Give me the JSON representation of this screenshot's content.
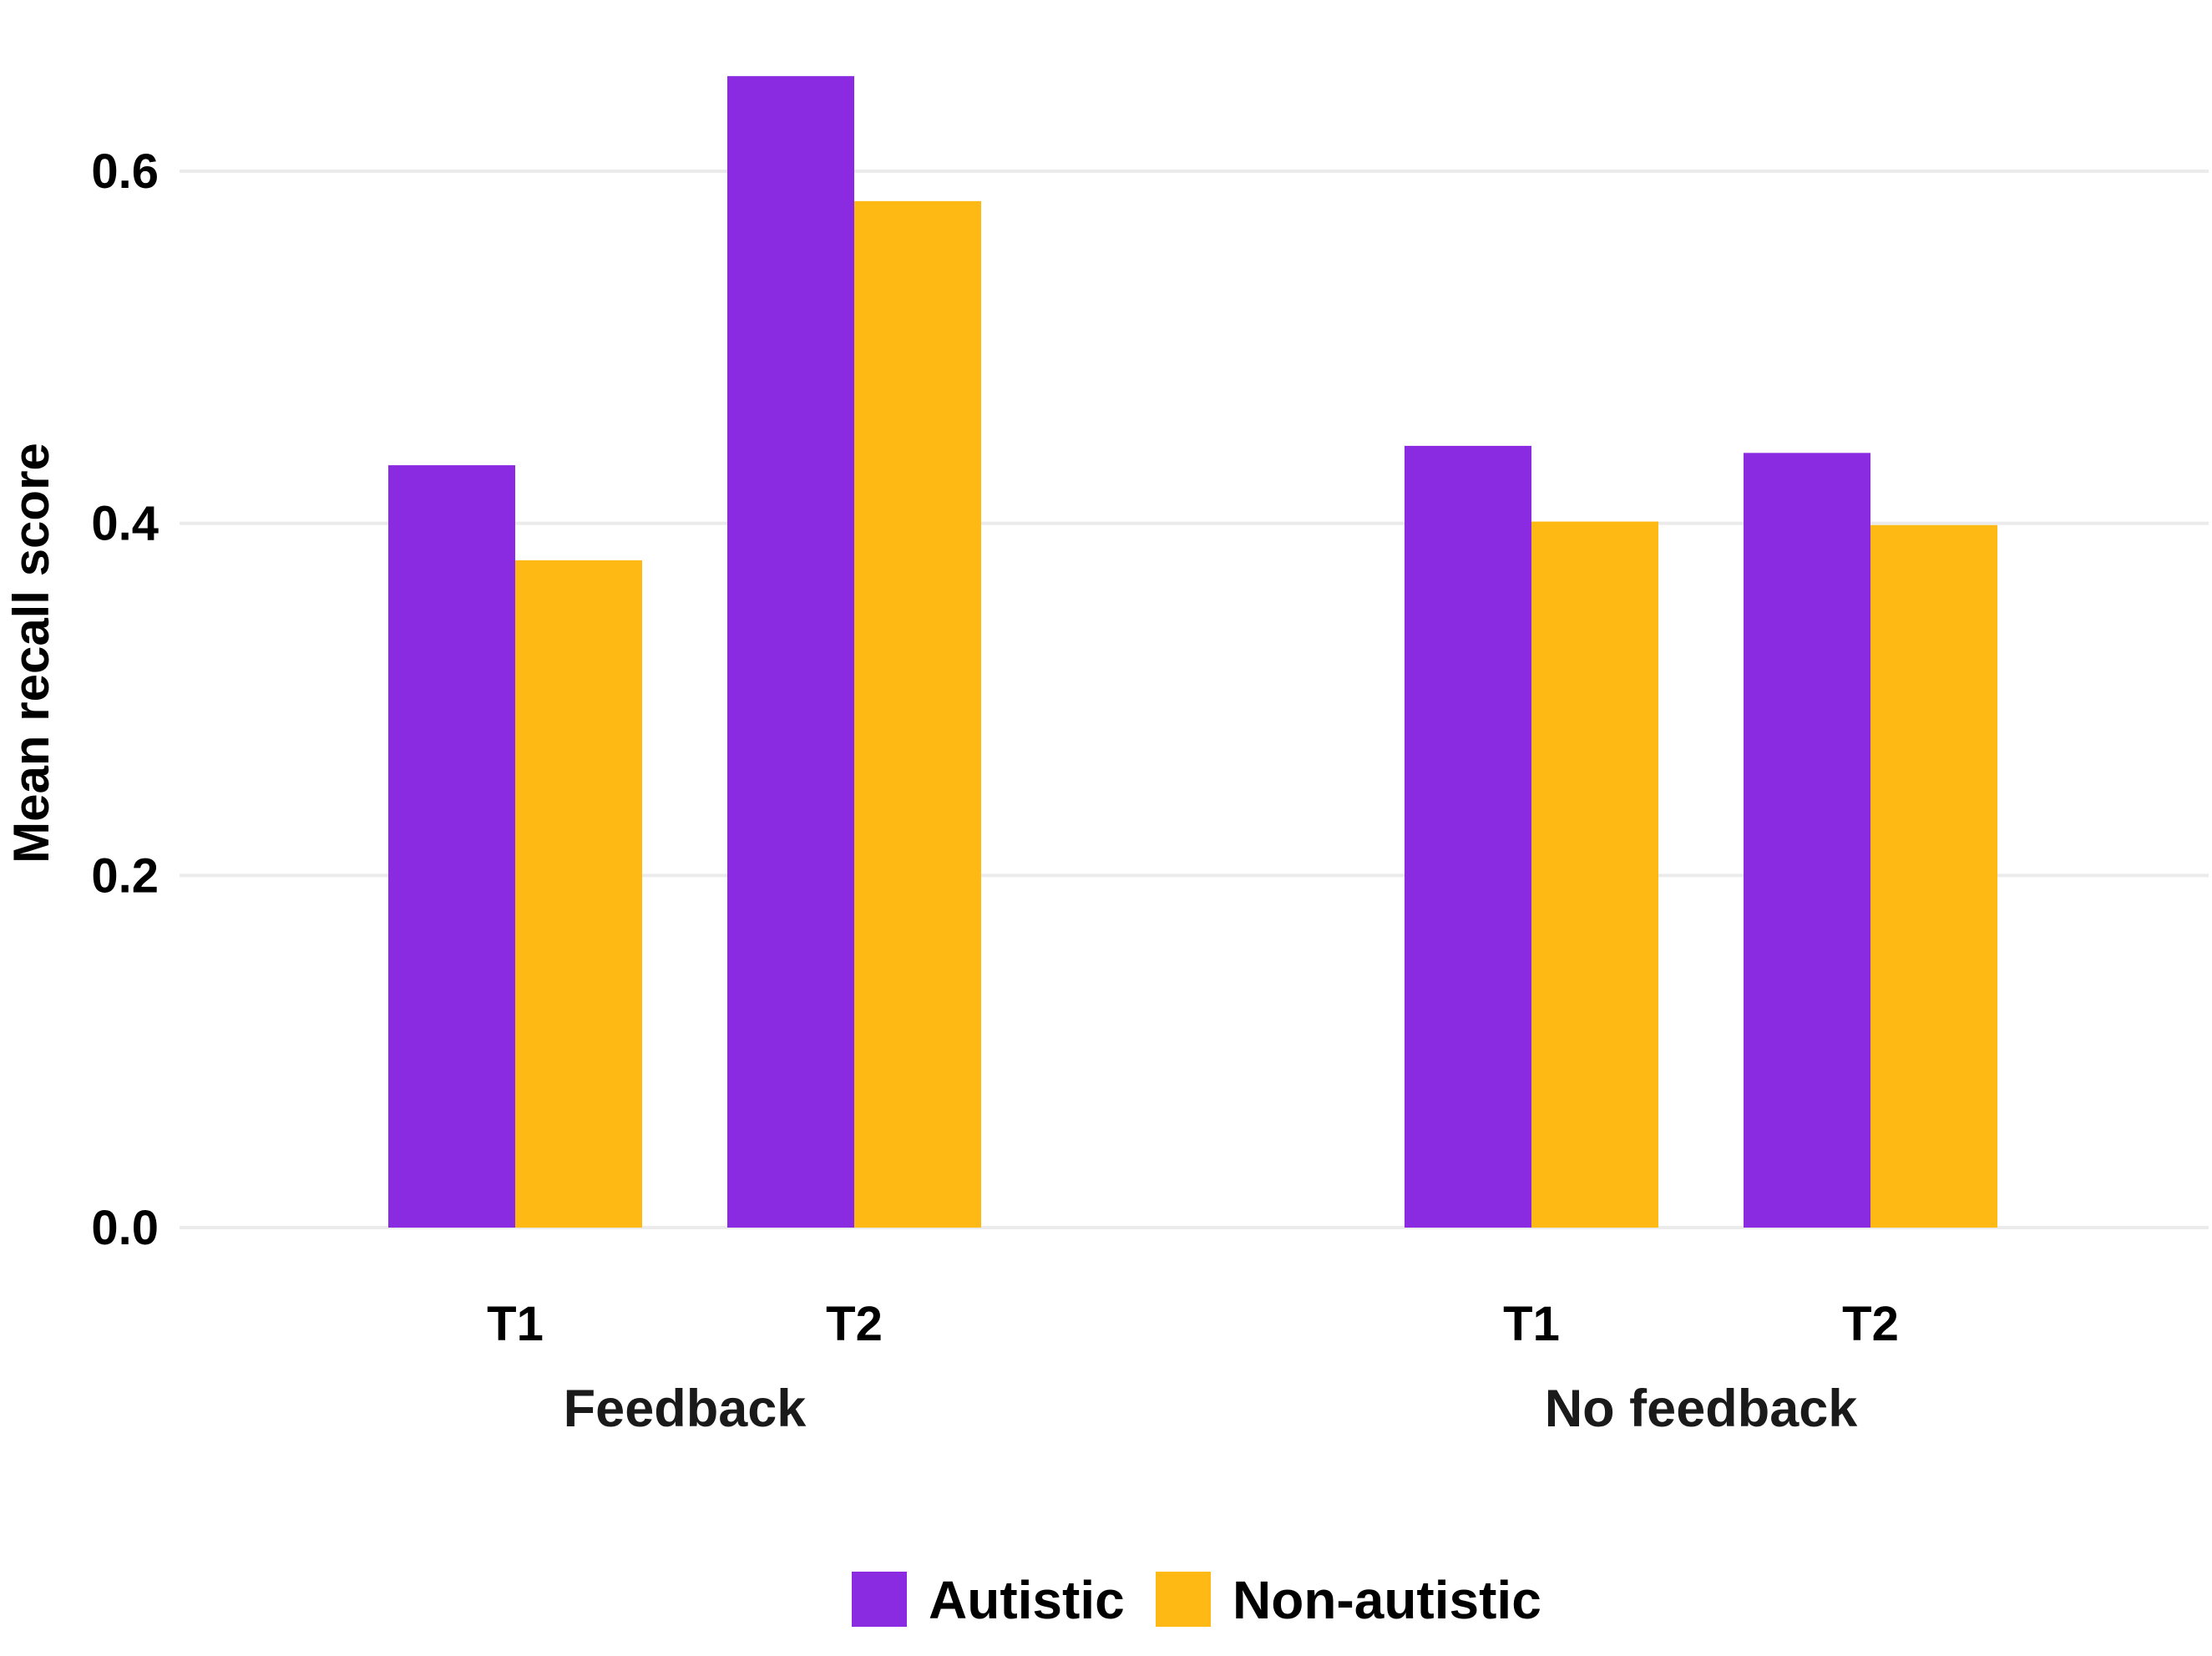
{
  "chart_data": {
    "type": "bar",
    "title": "",
    "xlabel": "",
    "ylabel": "Mean recall score",
    "ylim": [
      0,
      0.67
    ],
    "yticks": [
      0.0,
      0.2,
      0.4,
      0.6
    ],
    "ytick_labels": [
      "0.0",
      "0.2",
      "0.4",
      "0.6"
    ],
    "grid": true,
    "legend_position": "bottom",
    "groups": [
      {
        "label": "Feedback",
        "categories": [
          {
            "label": "T1",
            "values": [
              0.433,
              0.379
            ]
          },
          {
            "label": "T2",
            "values": [
              0.654,
              0.583
            ]
          }
        ]
      },
      {
        "label": "No feedback",
        "categories": [
          {
            "label": "T1",
            "values": [
              0.444,
              0.401
            ]
          },
          {
            "label": "T2",
            "values": [
              0.44,
              0.399
            ]
          }
        ]
      }
    ],
    "series": [
      {
        "name": "Autistic",
        "color": "#8a2be2"
      },
      {
        "name": "Non-autistic",
        "color": "#ffb914"
      }
    ]
  }
}
